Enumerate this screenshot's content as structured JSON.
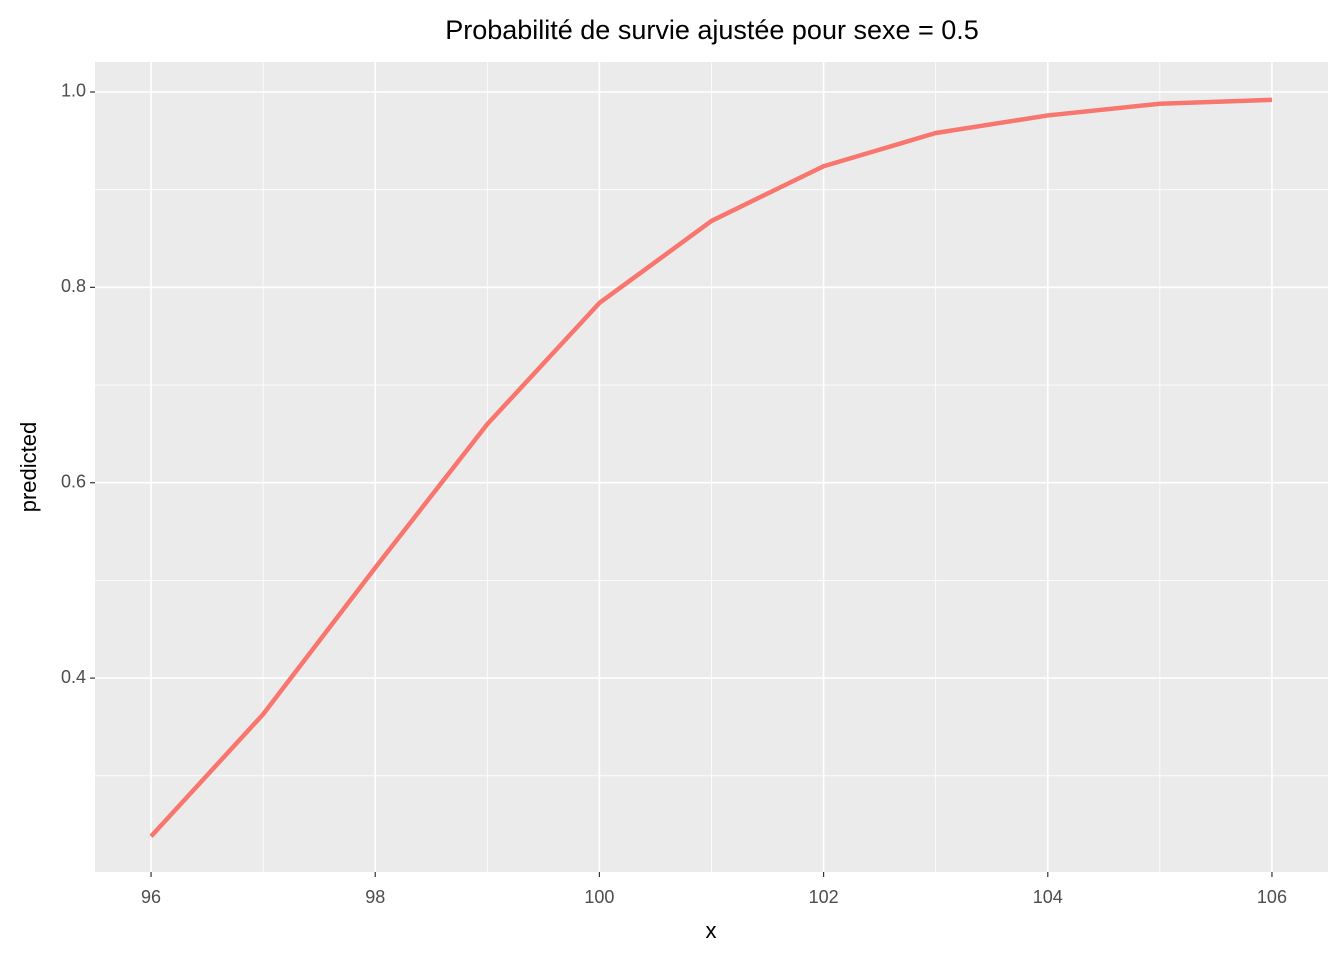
{
  "chart_data": {
    "type": "line",
    "title": "Probabilité de survie ajustée pour sexe = 0.5",
    "x_label": "x",
    "y_label": "predicted",
    "x": [
      96,
      97,
      98,
      99,
      100,
      101,
      102,
      103,
      104,
      105,
      106
    ],
    "series": [
      {
        "color": "#f8766d",
        "values": [
          0.238,
          0.363,
          0.513,
          0.66,
          0.784,
          0.868,
          0.924,
          0.958,
          0.976,
          0.988,
          0.992
        ]
      }
    ],
    "xlim": [
      95.5,
      106.5
    ],
    "xticks": [
      96,
      98,
      100,
      102,
      104,
      106
    ],
    "ylim": [
      0.2015,
      1.0307
    ],
    "yticks": [
      0.4,
      0.6,
      0.8,
      {
        "value": 1,
        "label": "1.0"
      }
    ],
    "grid": true
  }
}
